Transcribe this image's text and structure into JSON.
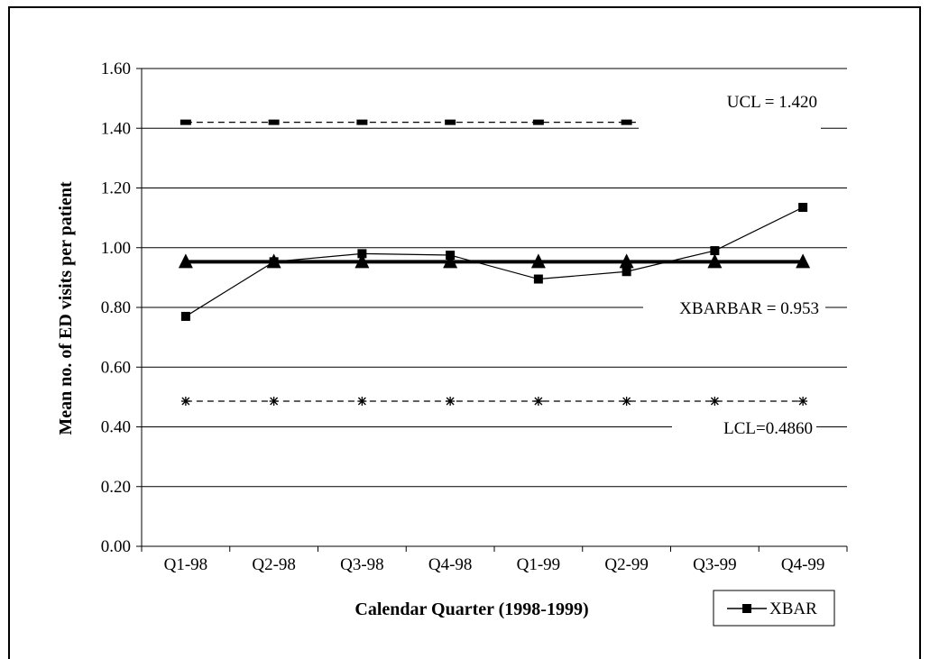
{
  "chart_data": {
    "type": "line",
    "title": "",
    "xlabel": "Calendar Quarter (1998-1999)",
    "ylabel": "Mean no. of ED visits per patient",
    "categories": [
      "Q1-98",
      "Q2-98",
      "Q3-98",
      "Q4-98",
      "Q1-99",
      "Q2-99",
      "Q3-99",
      "Q4-99"
    ],
    "ylim": [
      0,
      1.6
    ],
    "yticks": [
      "0.00",
      "0.20",
      "0.40",
      "0.60",
      "0.80",
      "1.00",
      "1.20",
      "1.40",
      "1.60"
    ],
    "grid": true,
    "series": [
      {
        "name": "XBAR",
        "values": [
          0.77,
          0.953,
          0.98,
          0.975,
          0.895,
          0.92,
          0.99,
          1.135
        ],
        "marker": "square",
        "style": "thin-solid",
        "color": "#000000"
      },
      {
        "values": [
          0.953,
          0.953,
          0.953,
          0.953,
          0.953,
          0.953,
          0.953,
          0.953
        ],
        "marker": "triangle",
        "style": "thick-solid",
        "color": "#000000"
      },
      {
        "values": [
          1.42,
          1.42,
          1.42,
          1.42,
          1.42,
          1.42,
          1.42,
          1.42
        ],
        "marker": "dash",
        "style": "dashed",
        "color": "#000000"
      },
      {
        "values": [
          0.486,
          0.486,
          0.486,
          0.486,
          0.486,
          0.486,
          0.486,
          0.486
        ],
        "marker": "asterisk",
        "style": "dashed",
        "color": "#000000"
      }
    ],
    "annotations": {
      "ucl": "UCL = 1.420",
      "xbarbar": "XBARBAR = 0.953",
      "lcl": "LCL=0.4860"
    },
    "legend": {
      "position": "bottom-right",
      "entries": [
        "XBAR"
      ]
    }
  }
}
